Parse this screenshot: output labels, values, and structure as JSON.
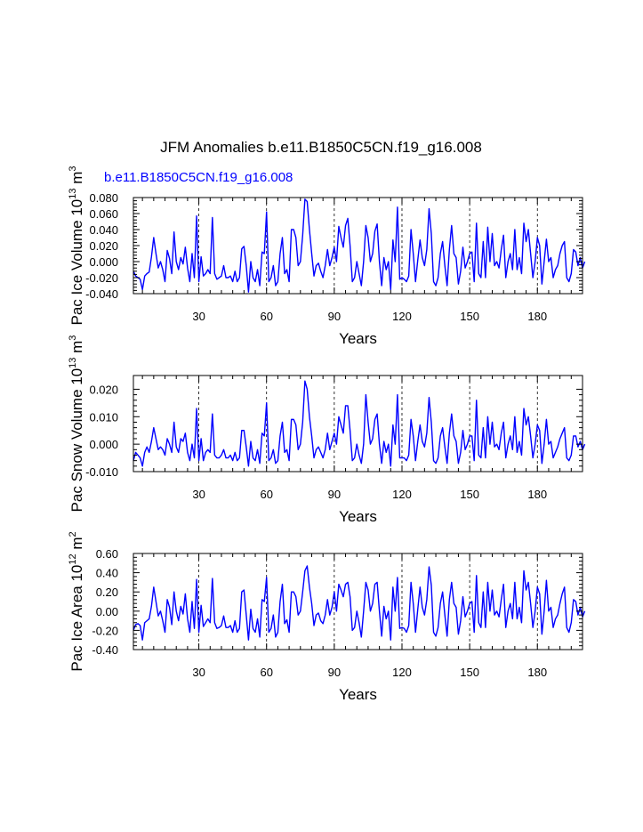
{
  "title": "JFM Anomalies b.e11.B1850C5CN.f19_g16.008",
  "run_label": "b.e11.B1850C5CN.f19_g16.008",
  "line_color": "#0000ff",
  "chart_data": [
    {
      "type": "line",
      "ylabel_main": "Pac Ice Volume 10",
      "ylabel_exp": "13",
      "ylabel_unit": " m",
      "ylabel_unit_exp": "3",
      "xlabel": "Years",
      "xlim": [
        1,
        200
      ],
      "xticks": [
        30,
        60,
        90,
        120,
        150,
        180
      ],
      "xtick_labels": [
        "30",
        "60",
        "90",
        "120",
        "150",
        "180"
      ],
      "ylim": [
        -0.04,
        0.08
      ],
      "yticks": [
        -0.04,
        -0.02,
        0.0,
        0.02,
        0.04,
        0.06,
        0.08
      ],
      "ytick_labels": [
        "-0.040",
        "-0.020",
        "0.000",
        "0.020",
        "0.040",
        "0.060",
        "0.080"
      ],
      "series": [
        {
          "name": "b.e11.B1850C5CN.f19_g16.008",
          "values": [
            -0.012,
            -0.018,
            -0.02,
            -0.022,
            -0.035,
            -0.018,
            -0.015,
            -0.013,
            0.006,
            0.03,
            0.01,
            -0.008,
            0.0,
            -0.01,
            -0.025,
            0.014,
            0.004,
            -0.015,
            0.037,
            0.0,
            -0.01,
            0.005,
            -0.003,
            0.018,
            -0.008,
            -0.025,
            0.01,
            -0.02,
            0.057,
            -0.025,
            0.006,
            -0.018,
            -0.015,
            -0.01,
            -0.015,
            0.055,
            -0.015,
            -0.022,
            -0.02,
            -0.018,
            -0.005,
            -0.02,
            -0.02,
            -0.018,
            -0.025,
            -0.012,
            -0.025,
            -0.02,
            0.016,
            0.019,
            -0.005,
            -0.038,
            0.0,
            -0.02,
            -0.025,
            -0.01,
            -0.03,
            0.012,
            0.01,
            0.062,
            -0.025,
            -0.02,
            -0.005,
            -0.03,
            -0.025,
            0.01,
            0.03,
            -0.015,
            -0.01,
            -0.025,
            0.04,
            0.04,
            0.03,
            -0.005,
            0.0,
            0.033,
            0.078,
            0.075,
            0.04,
            0.01,
            -0.018,
            -0.005,
            -0.002,
            -0.012,
            -0.02,
            -0.005,
            0.015,
            -0.005,
            0.005,
            0.018,
            0.0,
            0.044,
            0.03,
            0.018,
            0.045,
            0.054,
            0.02,
            -0.025,
            -0.02,
            0.0,
            -0.015,
            -0.03,
            0.0,
            0.045,
            0.03,
            0.0,
            0.01,
            0.038,
            0.047,
            0.0,
            -0.03,
            0.005,
            -0.01,
            0.0,
            -0.035,
            0.027,
            0.0,
            0.068,
            -0.022,
            -0.02,
            -0.022,
            -0.025,
            -0.018,
            0.04,
            0.01,
            -0.025,
            0.002,
            0.027,
            0.005,
            -0.005,
            0.015,
            0.066,
            0.035,
            -0.025,
            -0.03,
            -0.02,
            0.01,
            0.025,
            -0.005,
            -0.03,
            0.015,
            0.045,
            0.01,
            0.005,
            -0.028,
            -0.012,
            0.018,
            -0.008,
            0.0,
            0.01,
            0.012,
            -0.025,
            0.048,
            -0.015,
            -0.02,
            0.025,
            -0.02,
            0.043,
            0.0,
            0.035,
            -0.005,
            0.0,
            -0.008,
            0.015,
            0.033,
            -0.02,
            0.0,
            0.01,
            -0.01,
            0.04,
            -0.01,
            0.005,
            -0.015,
            0.048,
            0.025,
            0.04,
            0.01,
            -0.02,
            0.0,
            0.03,
            0.02,
            -0.028,
            0.0,
            0.028,
            0.0,
            0.005,
            -0.02,
            -0.01,
            -0.005,
            0.01,
            0.02,
            0.025,
            -0.02,
            -0.025,
            -0.015,
            0.015,
            0.012,
            -0.005,
            0.005,
            -0.008,
            0.0
          ]
        }
      ]
    },
    {
      "type": "line",
      "ylabel_main": "Pac Snow Volume 10",
      "ylabel_exp": "13",
      "ylabel_unit": " m",
      "ylabel_unit_exp": "3",
      "xlabel": "Years",
      "xlim": [
        1,
        200
      ],
      "xticks": [
        30,
        60,
        90,
        120,
        150,
        180
      ],
      "xtick_labels": [
        "30",
        "60",
        "90",
        "120",
        "150",
        "180"
      ],
      "ylim": [
        -0.01,
        0.025
      ],
      "yticks": [
        -0.01,
        0.0,
        0.01,
        0.02
      ],
      "ytick_labels": [
        "-0.010",
        "0.000",
        "0.010",
        "0.020"
      ],
      "series": [
        {
          "name": "b.e11.B1850C5CN.f19_g16.008",
          "values": [
            -0.006,
            -0.003,
            -0.004,
            -0.005,
            -0.008,
            -0.003,
            -0.001,
            -0.003,
            0.001,
            0.006,
            0.002,
            -0.002,
            -0.001,
            -0.002,
            -0.004,
            0.002,
            0.0,
            -0.003,
            0.008,
            -0.001,
            -0.003,
            0.002,
            0.001,
            0.004,
            -0.003,
            -0.006,
            0.0,
            -0.005,
            0.013,
            -0.006,
            0.002,
            -0.006,
            -0.003,
            -0.002,
            -0.003,
            0.011,
            -0.004,
            -0.005,
            -0.005,
            -0.004,
            -0.002,
            -0.005,
            -0.005,
            -0.004,
            -0.006,
            -0.003,
            -0.006,
            -0.005,
            0.005,
            0.005,
            -0.001,
            -0.008,
            0.001,
            -0.005,
            -0.006,
            -0.002,
            -0.007,
            0.004,
            0.003,
            0.015,
            -0.006,
            -0.005,
            -0.002,
            -0.007,
            -0.006,
            0.003,
            0.008,
            -0.003,
            -0.002,
            -0.006,
            0.009,
            0.009,
            0.007,
            -0.002,
            0.0,
            0.008,
            0.023,
            0.02,
            0.01,
            0.003,
            -0.005,
            -0.002,
            -0.001,
            -0.003,
            -0.005,
            -0.002,
            0.004,
            -0.002,
            0.001,
            0.004,
            0.0,
            0.01,
            0.007,
            0.004,
            0.014,
            0.014,
            0.005,
            -0.006,
            -0.005,
            0.0,
            -0.004,
            -0.007,
            0.0,
            0.018,
            0.008,
            0.0,
            0.002,
            0.009,
            0.011,
            0.0,
            -0.007,
            0.001,
            -0.003,
            0.0,
            -0.008,
            0.007,
            0.0,
            0.018,
            -0.005,
            -0.005,
            -0.005,
            -0.006,
            -0.004,
            0.009,
            0.003,
            -0.006,
            0.001,
            0.007,
            0.001,
            -0.001,
            0.004,
            0.017,
            0.008,
            -0.006,
            -0.007,
            -0.005,
            0.003,
            0.006,
            -0.001,
            -0.007,
            0.004,
            0.011,
            0.003,
            0.001,
            -0.007,
            -0.003,
            0.005,
            -0.002,
            0.0,
            0.003,
            0.003,
            -0.006,
            0.016,
            -0.004,
            -0.005,
            0.006,
            -0.005,
            0.01,
            0.0,
            0.008,
            -0.001,
            0.0,
            -0.002,
            0.004,
            0.008,
            -0.005,
            0.0,
            0.003,
            -0.002,
            0.01,
            -0.003,
            0.001,
            -0.004,
            0.013,
            0.007,
            0.01,
            0.003,
            -0.005,
            0.0,
            0.007,
            0.005,
            -0.007,
            0.0,
            0.009,
            0.0,
            0.001,
            -0.005,
            -0.003,
            -0.001,
            0.002,
            0.004,
            0.006,
            -0.005,
            -0.006,
            -0.004,
            0.003,
            0.003,
            -0.001,
            0.001,
            -0.002,
            0.0
          ]
        }
      ]
    },
    {
      "type": "line",
      "ylabel_main": "Pac Ice Area 10",
      "ylabel_exp": "12",
      "ylabel_unit": " m",
      "ylabel_unit_exp": "2",
      "xlabel": "Years",
      "xlim": [
        1,
        200
      ],
      "xticks": [
        30,
        60,
        90,
        120,
        150,
        180
      ],
      "xtick_labels": [
        "30",
        "60",
        "90",
        "120",
        "150",
        "180"
      ],
      "ylim": [
        -0.4,
        0.6
      ],
      "yticks": [
        -0.4,
        -0.2,
        0.0,
        0.2,
        0.4,
        0.6
      ],
      "ytick_labels": [
        "-0.40",
        "-0.20",
        "0.00",
        "0.20",
        "0.40",
        "0.60"
      ],
      "series": [
        {
          "name": "b.e11.B1850C5CN.f19_g16.008",
          "values": [
            -0.2,
            -0.14,
            -0.13,
            -0.15,
            -0.3,
            -0.12,
            -0.1,
            -0.08,
            0.05,
            0.25,
            0.1,
            -0.05,
            0.0,
            -0.1,
            -0.22,
            0.12,
            0.04,
            -0.14,
            0.2,
            0.0,
            -0.1,
            0.05,
            -0.03,
            0.18,
            -0.08,
            -0.22,
            0.1,
            -0.18,
            0.33,
            -0.22,
            0.06,
            -0.16,
            -0.12,
            -0.08,
            -0.12,
            0.34,
            -0.12,
            -0.18,
            -0.17,
            -0.15,
            -0.05,
            -0.17,
            -0.17,
            -0.15,
            -0.22,
            -0.1,
            -0.22,
            -0.18,
            0.2,
            0.22,
            -0.04,
            -0.3,
            0.02,
            -0.18,
            -0.22,
            -0.08,
            -0.27,
            0.12,
            0.1,
            0.35,
            -0.22,
            -0.18,
            -0.04,
            -0.27,
            -0.22,
            0.1,
            0.28,
            -0.13,
            -0.09,
            -0.22,
            0.2,
            0.2,
            0.15,
            -0.04,
            0.0,
            0.2,
            0.42,
            0.47,
            0.25,
            0.08,
            -0.15,
            -0.04,
            -0.02,
            -0.1,
            -0.13,
            -0.04,
            0.12,
            -0.04,
            0.04,
            0.2,
            0.0,
            0.28,
            0.22,
            0.15,
            0.28,
            0.3,
            0.15,
            -0.2,
            -0.17,
            0.0,
            -0.12,
            -0.27,
            0.0,
            0.3,
            0.22,
            0.0,
            0.08,
            0.28,
            0.3,
            0.0,
            -0.26,
            0.05,
            -0.08,
            0.0,
            -0.3,
            0.25,
            0.0,
            0.35,
            -0.18,
            -0.17,
            -0.18,
            -0.22,
            -0.15,
            0.3,
            0.08,
            -0.22,
            0.02,
            0.25,
            0.04,
            -0.04,
            0.12,
            0.46,
            0.27,
            -0.22,
            -0.26,
            -0.17,
            0.08,
            0.2,
            -0.04,
            -0.26,
            0.12,
            0.3,
            0.08,
            0.04,
            -0.24,
            -0.1,
            0.15,
            -0.06,
            0.0,
            0.08,
            0.1,
            -0.22,
            0.37,
            -0.12,
            -0.17,
            0.2,
            -0.17,
            0.3,
            0.0,
            0.22,
            -0.04,
            0.0,
            -0.06,
            0.12,
            0.28,
            -0.17,
            0.0,
            0.08,
            -0.08,
            0.3,
            -0.08,
            0.04,
            -0.12,
            0.42,
            0.22,
            0.3,
            0.08,
            -0.17,
            0.0,
            0.25,
            0.18,
            -0.24,
            0.0,
            0.32,
            0.0,
            0.04,
            -0.17,
            -0.08,
            -0.04,
            0.08,
            0.18,
            0.25,
            -0.17,
            -0.22,
            -0.12,
            0.12,
            0.1,
            -0.04,
            0.04,
            -0.06,
            0.0
          ]
        }
      ]
    }
  ]
}
